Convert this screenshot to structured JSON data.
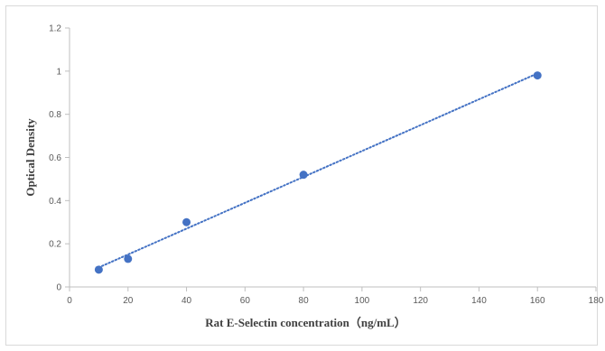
{
  "chart_data": {
    "type": "scatter",
    "title": "",
    "xlabel": "Rat E-Selectin  concentration（ng/mL）",
    "ylabel": "Optical Density",
    "xlim": [
      0,
      180
    ],
    "ylim": [
      0,
      1.2
    ],
    "x_ticks": [
      "0",
      "20",
      "40",
      "60",
      "80",
      "100",
      "120",
      "140",
      "160",
      "180"
    ],
    "y_ticks": [
      "0",
      "0.2",
      "0.4",
      "0.6",
      "0.8",
      "1",
      "1.2"
    ],
    "grid": false,
    "legend": "none",
    "trendline": "linear, dotted",
    "series": [
      {
        "x": [
          10,
          20,
          40,
          80,
          160
        ],
        "y": [
          0.08,
          0.13,
          0.3,
          0.52,
          0.98
        ]
      }
    ],
    "colors": {
      "marker": "#4472c4",
      "trendline": "#4472c4",
      "axis": "#bfbfbf"
    }
  }
}
